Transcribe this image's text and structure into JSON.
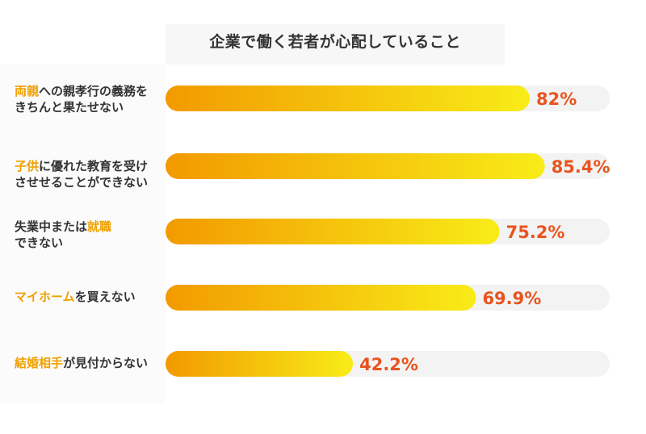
{
  "chart_data": {
    "type": "bar",
    "orientation": "horizontal",
    "title": "企業で働く若者が心配していること",
    "xlim": [
      0,
      100
    ],
    "grid": false,
    "categories": [
      "両親への親孝行の義務をきちんと果たせない",
      "子供に優れた教育を受けさせせることができない",
      "失業中または就職できない",
      "マイホームを買えない",
      "結婚相手が見付からない"
    ],
    "values": [
      82,
      85.4,
      75.2,
      69.9,
      42.2
    ],
    "value_labels": [
      "82%",
      "85.4%",
      "75.2%",
      "69.9%",
      "42.2%"
    ]
  },
  "labels": [
    [
      {
        "t": "両親",
        "hl": true
      },
      {
        "t": "への親孝行の義務を",
        "hl": false
      },
      {
        "br": true
      },
      {
        "t": "きちんと果たせない",
        "hl": false
      }
    ],
    [
      {
        "t": "子供",
        "hl": true
      },
      {
        "t": "に優れた教育を受け",
        "hl": false
      },
      {
        "br": true
      },
      {
        "t": "させせることができない",
        "hl": false
      }
    ],
    [
      {
        "t": "失業中または",
        "hl": false
      },
      {
        "t": "就職",
        "hl": true
      },
      {
        "br": true
      },
      {
        "t": "できない",
        "hl": false
      }
    ],
    [
      {
        "t": "マイホーム",
        "hl": true
      },
      {
        "t": "を買えない",
        "hl": false
      }
    ],
    [
      {
        "t": "結婚相手",
        "hl": true
      },
      {
        "t": "が見付からない",
        "hl": false
      }
    ]
  ],
  "colors": {
    "bar_start": "#f29a00",
    "bar_end": "#f8ec18",
    "track": "#f3f3f3",
    "value_text": "#e8541e",
    "highlight_text": "#f0a000",
    "label_text": "#333333"
  }
}
